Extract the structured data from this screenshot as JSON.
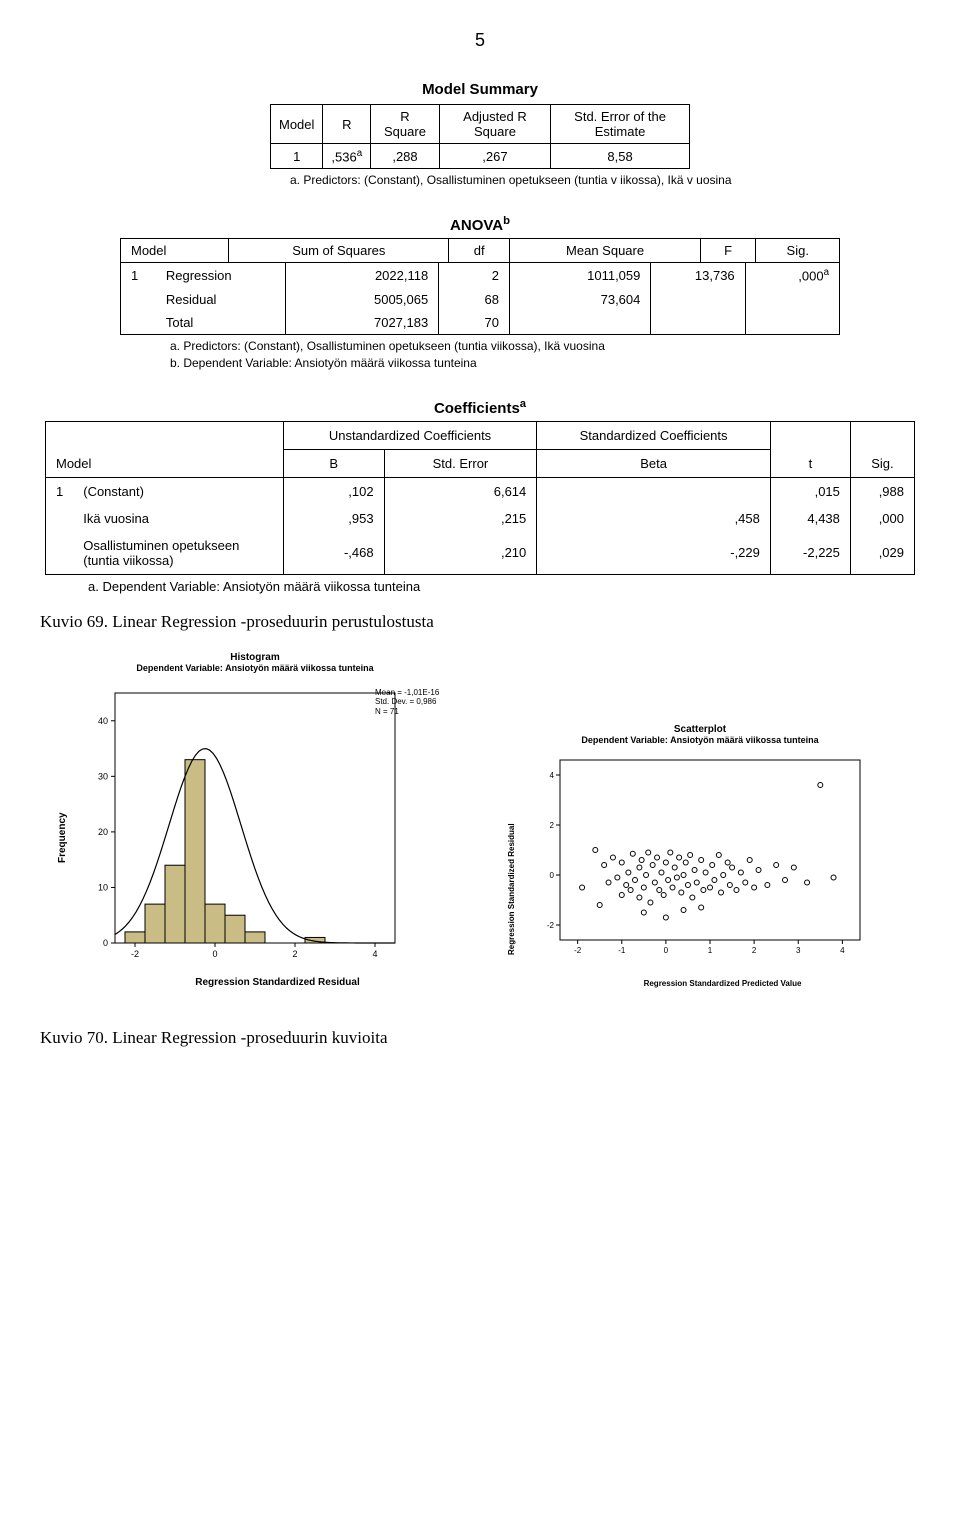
{
  "page_number": "5",
  "model_summary": {
    "title": "Model Summary",
    "headers": {
      "model": "Model",
      "r": "R",
      "rsq": "R Square",
      "adj": "Adjusted R Square",
      "se": "Std. Error of the Estimate"
    },
    "row": {
      "model": "1",
      "r": ",536",
      "r_sup": "a",
      "rsq": ",288",
      "adj": ",267",
      "se": "8,58"
    },
    "footnote": "a. Predictors: (Constant), Osallistuminen opetukseen (tuntia v iikossa), Ikä v uosina"
  },
  "anova": {
    "title": "ANOVA",
    "title_sup": "b",
    "headers": {
      "model": "Model",
      "ss": "Sum of Squares",
      "df": "df",
      "ms": "Mean Square",
      "f": "F",
      "sig": "Sig."
    },
    "rows": [
      {
        "m": "1",
        "label": "Regression",
        "ss": "2022,118",
        "df": "2",
        "ms": "1011,059",
        "f": "13,736",
        "sig": ",000",
        "sig_sup": "a"
      },
      {
        "m": "",
        "label": "Residual",
        "ss": "5005,065",
        "df": "68",
        "ms": "73,604",
        "f": "",
        "sig": ""
      },
      {
        "m": "",
        "label": "Total",
        "ss": "7027,183",
        "df": "70",
        "ms": "",
        "f": "",
        "sig": ""
      }
    ],
    "footnote_a": "a. Predictors: (Constant), Osallistuminen opetukseen (tuntia viikossa), Ikä vuosina",
    "footnote_b": "b. Dependent Variable: Ansiotyön määrä viikossa tunteina"
  },
  "coefficients": {
    "title": "Coefficients",
    "title_sup": "a",
    "top_headers": {
      "unstd": "Unstandardized Coefficients",
      "std": "Standardized Coefficients"
    },
    "headers": {
      "model": "Model",
      "b": "B",
      "se": "Std. Error",
      "beta": "Beta",
      "t": "t",
      "sig": "Sig."
    },
    "rows": [
      {
        "m": "1",
        "label": "(Constant)",
        "b": ",102",
        "se": "6,614",
        "beta": "",
        "t": ",015",
        "sig": ",988"
      },
      {
        "m": "",
        "label": "Ikä vuosina",
        "b": ",953",
        "se": ",215",
        "beta": ",458",
        "t": "4,438",
        "sig": ",000"
      },
      {
        "m": "",
        "label": "Osallistuminen opetukseen (tuntia viikossa)",
        "b": "-,468",
        "se": ",210",
        "beta": "-,229",
        "t": "-2,225",
        "sig": ",029"
      }
    ],
    "footnote": "a. Dependent Variable: Ansiotyön määrä viikossa tunteina"
  },
  "kuvio69": "Kuvio 69. Linear Regression -proseduurin perustulostusta",
  "histogram": {
    "title": "Histogram",
    "subtitle": "Dependent Variable: Ansiotyön määrä viikossa tunteina",
    "yaxis_label": "Frequency",
    "xaxis_label": "Regression Standardized Residual",
    "stats": {
      "mean": "Mean = -1,01E-16",
      "sd": "Std. Dev. = 0,986",
      "n": "N = 71"
    },
    "yticks": [
      "0",
      "10",
      "20",
      "30",
      "40"
    ],
    "xticks": [
      "-2",
      "0",
      "2",
      "4"
    ],
    "bars": [
      {
        "x": -2.0,
        "h": 2
      },
      {
        "x": -1.5,
        "h": 7
      },
      {
        "x": -1.0,
        "h": 14
      },
      {
        "x": -0.5,
        "h": 33
      },
      {
        "x": 0.0,
        "h": 7
      },
      {
        "x": 0.5,
        "h": 5
      },
      {
        "x": 1.0,
        "h": 2
      },
      {
        "x": 1.5,
        "h": 0
      },
      {
        "x": 2.0,
        "h": 0
      },
      {
        "x": 2.5,
        "h": 1
      }
    ],
    "bar_fill": "#c9bc84",
    "bar_stroke": "#000000",
    "plot_bg": "#ffffff",
    "border": "#000000",
    "y_max": 45,
    "curve_stroke": "#000000"
  },
  "scatter": {
    "title": "Scatterplot",
    "subtitle": "Dependent Variable: Ansiotyön määrä viikossa tunteina",
    "yaxis_label": "Regression Standardized Residual",
    "xaxis_label": "Regression Standardized Predicted Value",
    "xticks": [
      "-2",
      "-1",
      "0",
      "1",
      "2",
      "3",
      "4"
    ],
    "yticks": [
      "-2",
      "0",
      "2",
      "4"
    ],
    "x_range": [
      -2.4,
      4.4
    ],
    "y_range": [
      -2.6,
      4.6
    ],
    "marker_stroke": "#000000",
    "marker_fill": "none",
    "plot_bg": "#ffffff",
    "border": "#000000",
    "points": [
      [
        -1.9,
        -0.5
      ],
      [
        -1.6,
        1.0
      ],
      [
        -1.5,
        -1.2
      ],
      [
        -1.4,
        0.4
      ],
      [
        -1.3,
        -0.3
      ],
      [
        -1.2,
        0.7
      ],
      [
        -1.1,
        -0.1
      ],
      [
        -1.0,
        -0.8
      ],
      [
        -1.0,
        0.5
      ],
      [
        -0.9,
        -0.4
      ],
      [
        -0.85,
        0.1
      ],
      [
        -0.8,
        -0.6
      ],
      [
        -0.75,
        0.85
      ],
      [
        -0.7,
        -0.2
      ],
      [
        -0.6,
        0.3
      ],
      [
        -0.6,
        -0.9
      ],
      [
        -0.55,
        0.6
      ],
      [
        -0.5,
        -0.5
      ],
      [
        -0.45,
        0.0
      ],
      [
        -0.4,
        0.9
      ],
      [
        -0.35,
        -1.1
      ],
      [
        -0.3,
        0.4
      ],
      [
        -0.25,
        -0.3
      ],
      [
        -0.2,
        0.7
      ],
      [
        -0.15,
        -0.6
      ],
      [
        -0.1,
        0.1
      ],
      [
        -0.05,
        -0.8
      ],
      [
        0.0,
        0.5
      ],
      [
        0.05,
        -0.2
      ],
      [
        0.1,
        0.9
      ],
      [
        0.15,
        -0.5
      ],
      [
        0.2,
        0.3
      ],
      [
        0.25,
        -0.1
      ],
      [
        0.3,
        0.7
      ],
      [
        0.35,
        -0.7
      ],
      [
        0.4,
        0.0
      ],
      [
        0.45,
        0.5
      ],
      [
        0.5,
        -0.4
      ],
      [
        0.55,
        0.8
      ],
      [
        0.6,
        -0.9
      ],
      [
        0.65,
        0.2
      ],
      [
        0.7,
        -0.3
      ],
      [
        0.8,
        0.6
      ],
      [
        0.85,
        -0.6
      ],
      [
        0.9,
        0.1
      ],
      [
        1.0,
        -0.5
      ],
      [
        1.05,
        0.4
      ],
      [
        1.1,
        -0.2
      ],
      [
        1.2,
        0.8
      ],
      [
        1.25,
        -0.7
      ],
      [
        1.3,
        0.0
      ],
      [
        1.4,
        0.5
      ],
      [
        1.45,
        -0.4
      ],
      [
        1.5,
        0.3
      ],
      [
        1.6,
        -0.6
      ],
      [
        1.7,
        0.1
      ],
      [
        1.8,
        -0.3
      ],
      [
        1.9,
        0.6
      ],
      [
        2.0,
        -0.5
      ],
      [
        2.1,
        0.2
      ],
      [
        2.3,
        -0.4
      ],
      [
        2.5,
        0.4
      ],
      [
        2.7,
        -0.2
      ],
      [
        2.9,
        0.3
      ],
      [
        3.2,
        -0.3
      ],
      [
        3.5,
        3.6
      ],
      [
        3.8,
        -0.1
      ],
      [
        0.0,
        -1.7
      ],
      [
        -0.5,
        -1.5
      ],
      [
        0.4,
        -1.4
      ],
      [
        0.8,
        -1.3
      ]
    ]
  },
  "kuvio70": "Kuvio 70. Linear Regression -proseduurin kuvioita"
}
